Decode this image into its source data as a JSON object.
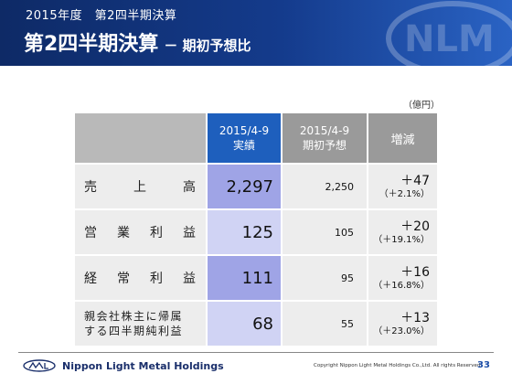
{
  "header": {
    "subtitle": "2015年度　第2四半期決算",
    "title": "第2四半期決算",
    "title_sub": "－ 期初予想比"
  },
  "unit": "（億円）",
  "table": {
    "columns": {
      "actual_line1": "2015/4-9",
      "actual_line2": "実績",
      "plan_line1": "2015/4-9",
      "plan_line2": "期初予想",
      "diff": "増減"
    },
    "rows": [
      {
        "label": "売上高",
        "actual": "2,297",
        "plan": "2,250",
        "diff": "＋47",
        "diff_pct": "（＋2.1%）"
      },
      {
        "label": "営業利益",
        "actual": "125",
        "plan": "105",
        "diff": "＋20",
        "diff_pct": "（＋19.1%）"
      },
      {
        "label": "経常利益",
        "actual": "111",
        "plan": "95",
        "diff": "＋16",
        "diff_pct": "（＋16.8%）"
      },
      {
        "label_line1": "親会社株主に帰属",
        "label_line2": "する四半期純利益",
        "actual": "68",
        "plan": "55",
        "diff": "＋13",
        "diff_pct": "（＋23.0%）"
      }
    ]
  },
  "footer": {
    "company": "Nippon Light Metal Holdings",
    "copyright": "Copyright Nippon Light Metal Holdings Co.,Ltd. All rights Reserved.",
    "page": "33"
  },
  "colors": {
    "header_dark": "#0e2a66",
    "accent_blue": "#1e5fbd",
    "actual_cell_dark": "#9fa4e6",
    "actual_cell_light": "#d0d3f4"
  }
}
